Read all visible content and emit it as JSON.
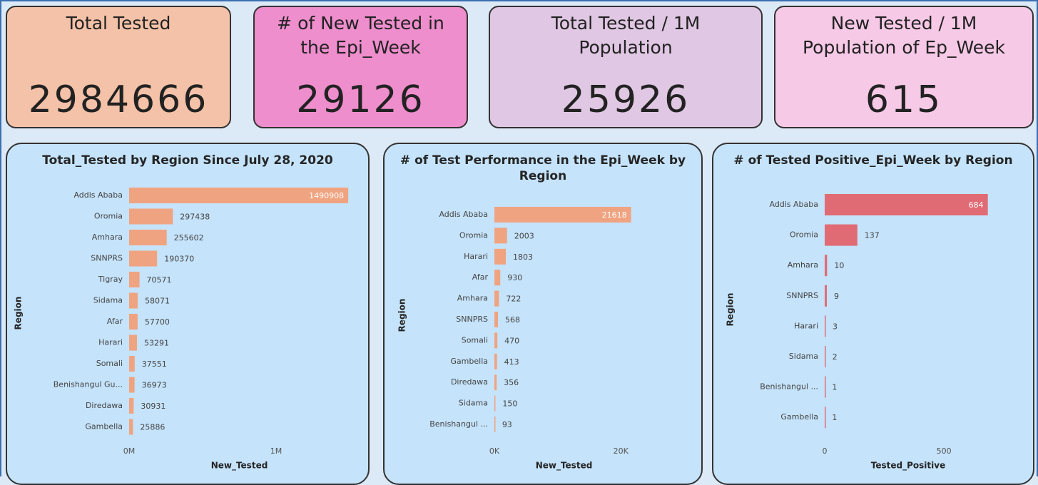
{
  "cards": [
    {
      "title": "Total Tested",
      "value": 2984666
    },
    {
      "title": "# of New Tested in the Epi_Week",
      "value": 29126
    },
    {
      "title": "Total Tested / 1M Population",
      "value": 25926
    },
    {
      "title": "New Tested / 1M Population of Ep_Week",
      "value": 615
    }
  ],
  "chart_data": [
    {
      "type": "bar",
      "orientation": "horizontal",
      "title": "Total_Tested by Region Since July 28, 2020",
      "x_label": "New_Tested",
      "y_label": "Region",
      "color": "#f0a380",
      "categories": [
        "Addis Ababa",
        "Oromia",
        "Amhara",
        "SNNPRS",
        "Tigray",
        "Sidama",
        "Afar",
        "Harari",
        "Somali",
        "Benishangul Gu...",
        "Diredawa",
        "Gambella"
      ],
      "values": [
        1490908,
        297438,
        255602,
        190370,
        70571,
        58071,
        57700,
        53291,
        37551,
        36973,
        30931,
        25886
      ],
      "xlim": [
        0,
        1500000
      ],
      "xticks": [
        {
          "value": 0,
          "label": "0M"
        },
        {
          "value": 1000000,
          "label": "1M"
        }
      ]
    },
    {
      "type": "bar",
      "orientation": "horizontal",
      "title": "# of Test Performance in the Epi_Week by Region",
      "x_label": "New_Tested",
      "y_label": "Region",
      "color": "#f0a380",
      "categories": [
        "Addis Ababa",
        "Oromia",
        "Harari",
        "Afar",
        "Amhara",
        "SNNPRS",
        "Somali",
        "Gambella",
        "Diredawa",
        "Sidama",
        "Benishangul ..."
      ],
      "values": [
        21618,
        2003,
        1803,
        930,
        722,
        568,
        470,
        413,
        356,
        150,
        93
      ],
      "xlim": [
        0,
        22000
      ],
      "xticks": [
        {
          "value": 0,
          "label": "0K"
        },
        {
          "value": 20000,
          "label": "20K"
        }
      ]
    },
    {
      "type": "bar",
      "orientation": "horizontal",
      "title": "# of Tested Positive_Epi_Week by Region",
      "x_label": "Tested_Positive",
      "y_label": "Region",
      "color": "#e06b75",
      "categories": [
        "Addis Ababa",
        "Oromia",
        "Amhara",
        "SNNPRS",
        "Harari",
        "Sidama",
        "Benishangul ...",
        "Gambella"
      ],
      "values": [
        684,
        137,
        10,
        9,
        3,
        2,
        1,
        1
      ],
      "xlim": [
        0,
        700
      ],
      "xticks": [
        0,
        500
      ]
    }
  ]
}
